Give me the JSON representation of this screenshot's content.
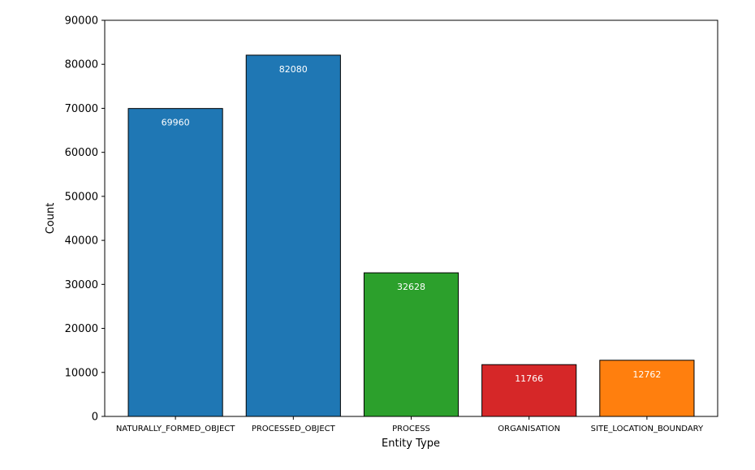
{
  "chart_data": {
    "type": "bar",
    "title": "",
    "xlabel": "Entity Type",
    "ylabel": "Count",
    "ylim": [
      0,
      90000
    ],
    "yticks": [
      0,
      10000,
      20000,
      30000,
      40000,
      50000,
      60000,
      70000,
      80000,
      90000
    ],
    "ytick_labels": [
      "0",
      "10000",
      "20000",
      "30000",
      "40000",
      "50000",
      "60000",
      "70000",
      "80000",
      "90000"
    ],
    "categories": [
      "NATURALLY_FORMED_OBJECT",
      "PROCESSED_OBJECT",
      "PROCESS",
      "ORGANISATION",
      "SITE_LOCATION_BOUNDARY"
    ],
    "values": [
      69960,
      82080,
      32628,
      11766,
      12762
    ],
    "value_labels": [
      "69960",
      "82080",
      "32628",
      "11766",
      "12762"
    ],
    "colors": [
      "#1f77b4",
      "#1f77b4",
      "#2ca02c",
      "#d62728",
      "#ff7f0e"
    ],
    "edge_color": "#000000",
    "grid": false,
    "legend": "none"
  }
}
